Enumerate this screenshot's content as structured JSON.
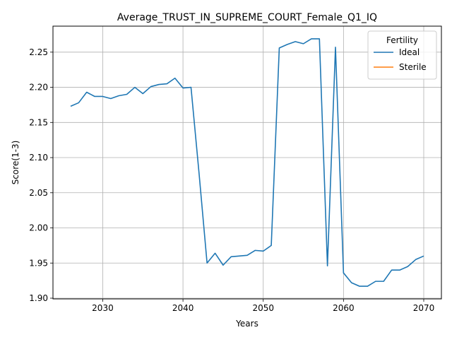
{
  "chart_data": {
    "type": "line",
    "title": "Average_TRUST_IN_SUPREME_COURT_Female_Q1_IQ",
    "xlabel": "Years",
    "ylabel": "Score(1-3)",
    "xlim": [
      2023.8,
      2072.2
    ],
    "ylim": [
      1.899,
      2.287
    ],
    "xticks": [
      2030,
      2040,
      2050,
      2060,
      2070
    ],
    "yticks": [
      1.9,
      1.95,
      2.0,
      2.05,
      2.1,
      2.15,
      2.2,
      2.25
    ],
    "xtick_labels": [
      "2030",
      "2040",
      "2050",
      "2060",
      "2070"
    ],
    "ytick_labels": [
      "1.90",
      "1.95",
      "2.00",
      "2.05",
      "2.10",
      "2.15",
      "2.20",
      "2.25"
    ],
    "grid": true,
    "legend": {
      "title": "Fertility",
      "position": "top-right"
    },
    "series": [
      {
        "name": "Ideal",
        "color": "#1f77b4",
        "x": [
          2026,
          2027,
          2028,
          2029,
          2030,
          2031,
          2032,
          2033,
          2034,
          2035,
          2036,
          2037,
          2038,
          2039,
          2040,
          2041,
          2042,
          2043,
          2044,
          2045,
          2046,
          2047,
          2048,
          2049,
          2050,
          2051,
          2052,
          2053,
          2054,
          2055,
          2056,
          2057,
          2058,
          2059,
          2060,
          2061,
          2062,
          2063,
          2064,
          2065,
          2066,
          2067,
          2068,
          2069,
          2070
        ],
        "y": [
          2.173,
          2.178,
          2.193,
          2.187,
          2.187,
          2.184,
          2.188,
          2.19,
          2.2,
          2.191,
          2.201,
          2.204,
          2.205,
          2.213,
          2.199,
          2.2,
          2.078,
          1.95,
          1.964,
          1.947,
          1.959,
          1.96,
          1.961,
          1.968,
          1.967,
          1.975,
          2.256,
          2.261,
          2.265,
          2.262,
          2.269,
          2.269,
          1.946,
          2.257,
          1.936,
          1.922,
          1.917,
          1.917,
          1.924,
          1.924,
          1.94,
          1.94,
          1.945,
          1.955,
          1.96
        ]
      },
      {
        "name": "Sterile",
        "color": "#ff7f0e",
        "x": [],
        "y": []
      }
    ]
  }
}
